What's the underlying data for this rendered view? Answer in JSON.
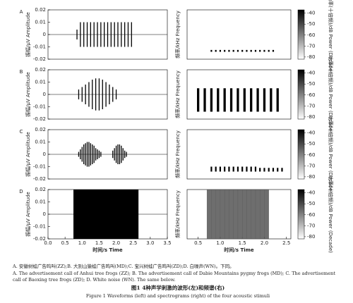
{
  "chart_data": [
    {
      "type": "waveform",
      "label": "A",
      "ylabel": "振幅/μV Amplitude",
      "ylim": [
        -0.02,
        0.02
      ],
      "yticks": [
        0.02,
        0.01,
        0,
        -0.01,
        -0.02
      ],
      "xlim": [
        0,
        3.5
      ],
      "x": [
        0.85,
        0.95,
        1.05,
        1.15,
        1.25,
        1.35,
        1.45,
        1.55,
        1.65,
        1.75,
        1.85,
        1.95,
        2.05,
        2.15,
        2.25,
        2.35,
        2.45
      ],
      "values": [
        0.004,
        0.01,
        0.01,
        0.01,
        0.01,
        0.01,
        0.01,
        0.01,
        0.01,
        0.01,
        0.01,
        0.01,
        0.01,
        0.01,
        0.01,
        0.01,
        0.01
      ],
      "color": "#000000"
    },
    {
      "type": "spectrogram",
      "ylabel": "频率/kHz Frequency",
      "xlim": [
        0.25,
        2.6
      ],
      "ylim": [
        0,
        8
      ],
      "x": [
        0.8,
        0.9,
        1.0,
        1.1,
        1.2,
        1.3,
        1.4,
        1.5,
        1.6,
        1.7,
        1.8,
        1.9,
        2.0,
        2.1,
        2.2
      ],
      "values": [
        1.5,
        1.5,
        1.5,
        1.5,
        1.5,
        1.5,
        1.5,
        1.5,
        1.5,
        1.5,
        1.5,
        1.5,
        1.5,
        1.5,
        1.5
      ],
      "color": "#000000",
      "colorbar_lim": [
        -37,
        -82
      ],
      "colorbar_ticks": [
        -40,
        -50,
        -60,
        -70,
        -80
      ],
      "colorbar_label": "功率(十倍频)/dB Power (Decade)"
    },
    {
      "type": "waveform",
      "label": "B",
      "ylabel": "振幅/μV Amplitude",
      "ylim": [
        -0.02,
        0.02
      ],
      "yticks": [
        0.02,
        0.01,
        0,
        -0.01,
        -0.02
      ],
      "xlim": [
        0,
        3.5
      ],
      "x": [
        0.9,
        1.0,
        1.1,
        1.2,
        1.3,
        1.4,
        1.5,
        1.6,
        1.7,
        1.8,
        1.9,
        2.0
      ],
      "values": [
        0.004,
        0.006,
        0.008,
        0.01,
        0.012,
        0.013,
        0.013,
        0.012,
        0.01,
        0.008,
        0.006,
        0.004
      ],
      "color": "#000000"
    },
    {
      "type": "spectrogram",
      "ylabel": "频率/kHz Frequency",
      "xlim": [
        0.25,
        2.6
      ],
      "ylim": [
        0,
        8
      ],
      "x": [
        0.5,
        0.65,
        0.8,
        0.95,
        1.1,
        1.25,
        1.4,
        1.55,
        1.7,
        1.85,
        2.0,
        2.15,
        2.3
      ],
      "values": [
        5,
        5,
        5,
        5,
        5,
        5,
        5,
        5,
        5,
        5,
        5,
        5,
        5
      ],
      "color": "#000000",
      "colorbar_lim": [
        -37,
        -82
      ],
      "colorbar_ticks": [
        -40,
        -50,
        -60,
        -70,
        -80
      ],
      "colorbar_label": "功率(十倍频)/dB Power (Decade)"
    },
    {
      "type": "waveform",
      "label": "C",
      "ylabel": "振幅/μV Amplitude",
      "ylim": [
        -0.02,
        0.02
      ],
      "yticks": [
        0.02,
        0.01,
        0,
        -0.01,
        -0.02
      ],
      "xlim": [
        0,
        3.5
      ],
      "x": [
        0.9,
        0.95,
        1.0,
        1.05,
        1.1,
        1.15,
        1.2,
        1.25,
        1.3,
        1.35,
        1.4,
        1.45,
        1.5,
        1.55,
        1.9,
        1.95,
        2.0,
        2.05,
        2.1,
        2.15,
        2.2,
        2.25,
        2.3
      ],
      "values": [
        0.002,
        0.004,
        0.006,
        0.008,
        0.009,
        0.01,
        0.01,
        0.009,
        0.008,
        0.007,
        0.005,
        0.004,
        0.003,
        0.002,
        0.003,
        0.005,
        0.007,
        0.008,
        0.008,
        0.007,
        0.005,
        0.003,
        0.002
      ],
      "color": "#000000"
    },
    {
      "type": "spectrogram",
      "ylabel": "频率/kHz Frequency",
      "xlim": [
        0.25,
        2.6
      ],
      "ylim": [
        0,
        8
      ],
      "x": [
        0.8,
        0.9,
        1.0,
        1.1,
        1.2,
        1.3,
        1.4,
        1.5,
        1.6,
        1.7,
        1.8,
        1.9,
        2.0,
        2.1,
        2.2,
        2.3,
        2.4
      ],
      "values": [
        2,
        2,
        2,
        2,
        2,
        2,
        2,
        2,
        2,
        2,
        2,
        1.8,
        1.8,
        1.8,
        1.8,
        1.8,
        1.8
      ],
      "color": "#000000",
      "colorbar_lim": [
        -37,
        -82
      ],
      "colorbar_ticks": [
        -40,
        -50,
        -60,
        -70,
        -80
      ],
      "colorbar_label": "功率(十倍频)/dB Power (Decade)"
    },
    {
      "type": "waveform",
      "label": "D",
      "ylabel": "振幅/μV Amplitude",
      "ylim": [
        -0.02,
        0.02
      ],
      "yticks": [
        0.02,
        0.01,
        0,
        -0.01,
        -0.02
      ],
      "xlim": [
        0,
        3.5
      ],
      "xticks": [
        {
          "value": 0,
          "label": "0.0"
        },
        0.5,
        {
          "value": 1,
          "label": "1.0"
        },
        1.5,
        {
          "value": 2,
          "label": "2.0"
        },
        2.5,
        {
          "value": 3,
          "label": "3.0"
        },
        3.5
      ],
      "xlabel": "时间/s Time",
      "continuous": true,
      "x": [
        0.8,
        0.9,
        1.0,
        1.1,
        1.2,
        1.3,
        1.4,
        1.5,
        1.6,
        1.7,
        1.8,
        1.9,
        2.0,
        2.1,
        2.2,
        2.3,
        2.4,
        2.5,
        2.6
      ],
      "values": [
        0.02,
        0.02,
        0.02,
        0.02,
        0.02,
        0.02,
        0.02,
        0.02,
        0.02,
        0.02,
        0.02,
        0.02,
        0.02,
        0.02,
        0.02,
        0.02,
        0.02,
        0.02,
        0.02
      ],
      "color": "#000000"
    },
    {
      "type": "spectrogram",
      "ylabel": "频率/kHz Frequency",
      "xlim": [
        0.25,
        2.6
      ],
      "ylim": [
        0,
        8
      ],
      "xticks": [
        0.5,
        {
          "value": 1,
          "label": "1.0"
        },
        1.5,
        {
          "value": 2,
          "label": "2.0"
        },
        2.5
      ],
      "xlabel": "时间/s Time",
      "continuous": true,
      "x": [
        0.75,
        0.85,
        0.95,
        1.05,
        1.15,
        1.25,
        1.35,
        1.45,
        1.55,
        1.65,
        1.75,
        1.85,
        1.95,
        2.05
      ],
      "values": [
        8,
        8,
        8,
        8,
        8,
        8,
        8,
        8,
        8,
        8,
        8,
        8,
        8,
        8
      ],
      "color": "#555555",
      "colorbar_lim": [
        -37,
        -82
      ],
      "colorbar_ticks": [
        -40,
        -50,
        -60,
        -70,
        -80
      ],
      "colorbar_label": "功率(十倍频)/dB Power (Decade)"
    }
  ],
  "caption": {
    "note_zh": "A. 安徽树蛙广告鸣叫(ZZ);B. 大别山猿蛙广告鸣叫(MD);C. 宝兴树蛙广告鸣叫(ZD);D. 白噪声(WN)。下同。",
    "note_en": "A. The advertisement call of Anhui tree frogs (ZZ); B. The advertisement call of Dabie Mountains pygmy frogs (MD); C. The advertisement call of Baoxing tree frogs (ZD); D. White noise (WN). The same below.",
    "title_zh": "图1  4种声学刺激的波形(左)和频谱(右)",
    "title_en": "Figure 1  Waveforms (left) and spectrograms (right) of the four acoustic stimuli"
  }
}
